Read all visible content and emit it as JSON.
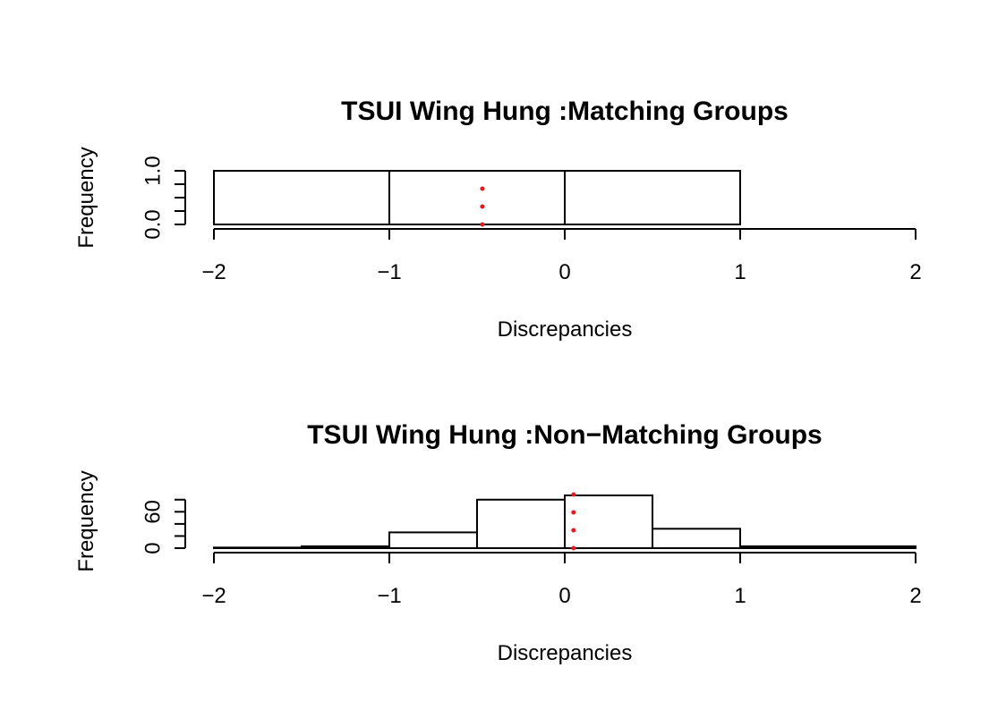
{
  "chart_data": [
    {
      "type": "bar",
      "title": "TSUI Wing Hung :Matching Groups",
      "xlabel": "Discrepancies",
      "ylabel": "Frequency",
      "xlim": [
        -2,
        2
      ],
      "ylim": [
        0,
        1
      ],
      "x_ticks": [
        -2,
        -1,
        0,
        1,
        2
      ],
      "x_tick_labels": [
        "−2",
        "−1",
        "0",
        "1",
        "2"
      ],
      "y_ticks": [
        0,
        0.25,
        0.5,
        0.75,
        1.0
      ],
      "y_tick_labels": [
        "0.0",
        "",
        "",
        "",
        "1.0"
      ],
      "bins": [
        {
          "start": -2,
          "end": -1,
          "count": 1
        },
        {
          "start": -1,
          "end": 0,
          "count": 1
        },
        {
          "start": 0,
          "end": 1,
          "count": 1
        },
        {
          "start": 1,
          "end": 2,
          "count": 0
        }
      ],
      "mean_line": {
        "x": -0.47,
        "color": "#e41a1c",
        "style": "dotted"
      },
      "grid": false
    },
    {
      "type": "bar",
      "title": "TSUI Wing Hung :Non−Matching Groups",
      "xlabel": "Discrepancies",
      "ylabel": "Frequency",
      "xlim": [
        -2,
        2
      ],
      "ylim": [
        0,
        90
      ],
      "x_ticks": [
        -2,
        -1,
        0,
        1,
        2
      ],
      "x_tick_labels": [
        "−2",
        "−1",
        "0",
        "1",
        "2"
      ],
      "y_ticks": [
        0,
        20,
        40,
        60,
        80
      ],
      "y_tick_labels": [
        "0",
        "",
        "",
        "60",
        ""
      ],
      "bins": [
        {
          "start": -2.0,
          "end": -1.5,
          "count": 1
        },
        {
          "start": -1.5,
          "end": -1.0,
          "count": 3
        },
        {
          "start": -1.0,
          "end": -0.5,
          "count": 26
        },
        {
          "start": -0.5,
          "end": 0.0,
          "count": 80
        },
        {
          "start": 0.0,
          "end": 0.5,
          "count": 87
        },
        {
          "start": 0.5,
          "end": 1.0,
          "count": 32
        },
        {
          "start": 1.0,
          "end": 1.5,
          "count": 3
        },
        {
          "start": 1.5,
          "end": 2.0,
          "count": 3
        }
      ],
      "mean_line": {
        "x": 0.05,
        "color": "#e41a1c",
        "style": "dotted"
      },
      "grid": false
    }
  ]
}
